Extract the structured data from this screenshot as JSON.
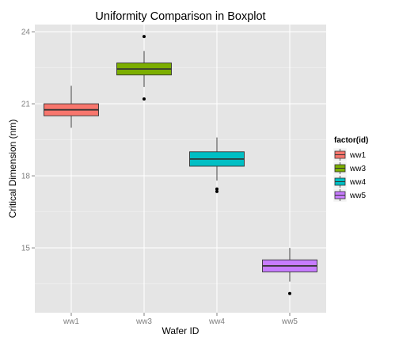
{
  "colors": {
    "panel_background": "#e5e5e5",
    "grid_major": "#ffffff",
    "grid_minor": "#f2f2f2",
    "box_outline": "#333333",
    "outlier": "#000000",
    "tick_label": "#7f7f7f"
  },
  "chart_data": {
    "type": "boxplot",
    "title": "Uniformity Comparison in Boxplot",
    "xlabel": "Wafer ID",
    "ylabel": "Critical Dimension (nm)",
    "ylim": [
      12.3,
      24.3
    ],
    "y_ticks": [
      15,
      18,
      21,
      24
    ],
    "grid": true,
    "legend": {
      "title": "factor(id)",
      "position": "right",
      "entries": [
        "ww1",
        "ww3",
        "ww4",
        "ww5"
      ]
    },
    "categories": [
      "ww1",
      "ww3",
      "ww4",
      "ww5"
    ],
    "boxes": [
      {
        "category": "ww1",
        "color": "#f8766d",
        "whisker_low": 20.0,
        "q1": 20.5,
        "median": 20.75,
        "q3": 21.0,
        "whisker_high": 21.75,
        "outliers": []
      },
      {
        "category": "ww3",
        "color": "#7cae00",
        "whisker_low": 21.7,
        "q1": 22.2,
        "median": 22.45,
        "q3": 22.7,
        "whisker_high": 23.2,
        "outliers": [
          21.2,
          23.8
        ]
      },
      {
        "category": "ww4",
        "color": "#00bfc4",
        "whisker_low": 17.8,
        "q1": 18.4,
        "median": 18.7,
        "q3": 19.0,
        "whisker_high": 19.6,
        "outliers": [
          17.35,
          17.45
        ]
      },
      {
        "category": "ww5",
        "color": "#c77cff",
        "whisker_low": 13.6,
        "q1": 14.0,
        "median": 14.25,
        "q3": 14.5,
        "whisker_high": 15.0,
        "outliers": [
          13.1
        ]
      }
    ]
  }
}
